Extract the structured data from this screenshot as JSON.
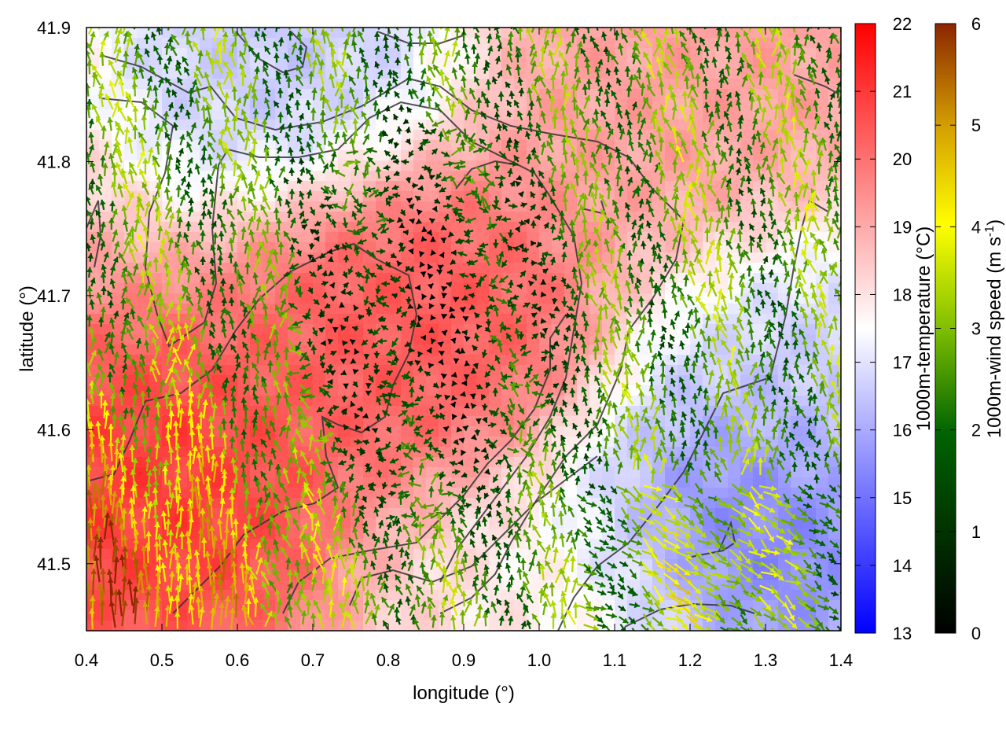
{
  "chart_data": {
    "type": "heatmap",
    "xlabel": "longitude (°)",
    "ylabel": "latitude (°)",
    "xlim": [
      0.4,
      1.4
    ],
    "ylim": [
      41.45,
      41.9
    ],
    "x_ticks": [
      "0.4",
      "0.5",
      "0.6",
      "0.7",
      "0.8",
      "0.9",
      "1.0",
      "1.1",
      "1.2",
      "1.3",
      "1.4"
    ],
    "y_ticks": [
      "41.5",
      "41.6",
      "41.7",
      "41.8",
      "41.9"
    ],
    "temperature_colorbar": {
      "label": "1000m-temperature (°C)",
      "range": [
        13,
        22
      ],
      "ticks": [
        "13",
        "14",
        "15",
        "16",
        "17",
        "18",
        "19",
        "20",
        "21",
        "22"
      ],
      "colors": [
        "#0000ff",
        "#ffffff",
        "#ff0000"
      ]
    },
    "wind_colorbar": {
      "label_main": "1000m-wind speed (m s",
      "label_sup": "-1",
      "label_end": ")",
      "range": [
        0,
        6
      ],
      "ticks": [
        "0",
        "1",
        "2",
        "3",
        "4",
        "5",
        "6"
      ],
      "colors": [
        "#000000",
        "#006400",
        "#7fbf00",
        "#ffff00",
        "#d4a000",
        "#8b2500"
      ]
    },
    "temperature_field_centers": [
      {
        "lon": 0.83,
        "lat": 41.68,
        "temp": 20.6
      },
      {
        "lon": 0.48,
        "lat": 41.55,
        "temp": 21.2
      },
      {
        "lon": 0.65,
        "lat": 41.88,
        "temp": 16.2
      },
      {
        "lon": 1.27,
        "lat": 41.52,
        "temp": 14.6
      },
      {
        "lon": 1.36,
        "lat": 41.65,
        "temp": 16.4
      },
      {
        "lon": 1.03,
        "lat": 41.47,
        "temp": 17.8
      },
      {
        "lon": 1.2,
        "lat": 41.83,
        "temp": 19.2
      }
    ]
  }
}
